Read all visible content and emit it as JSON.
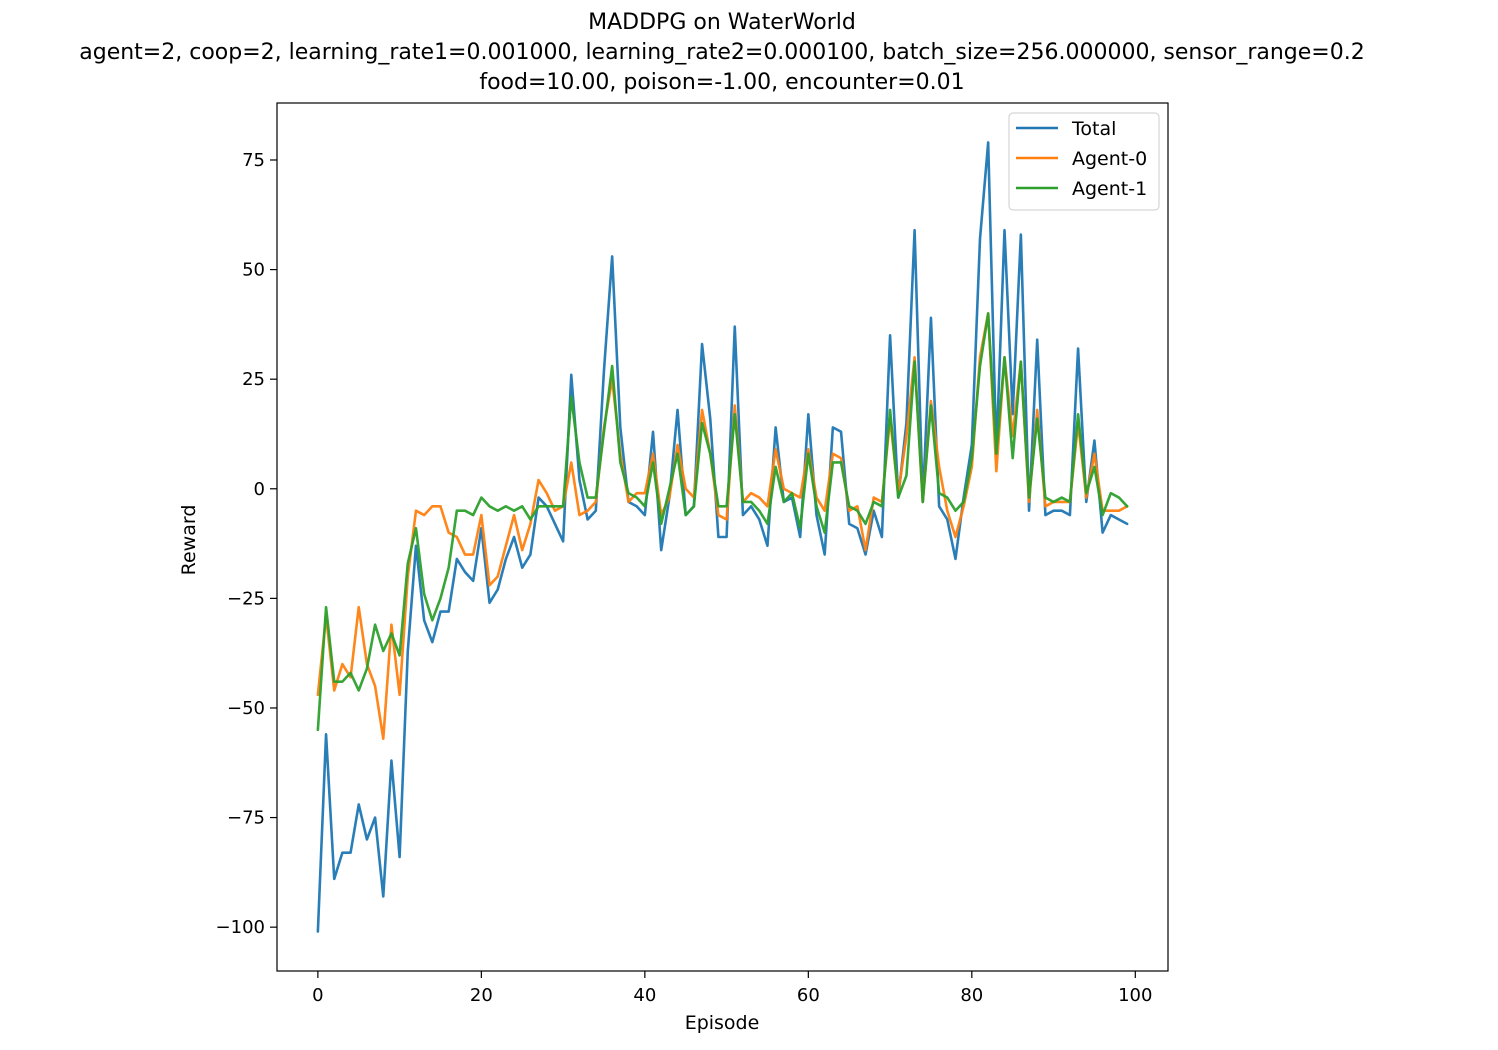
{
  "chart_data": {
    "type": "line",
    "title": "MADDPG on WaterWorld",
    "subtitle_lines": [
      "agent=2, coop=2, learning_rate1=0.001000, learning_rate2=0.000100, batch_size=256.000000, sensor_range=0.2",
      "food=10.00, poison=-1.00, encounter=0.01"
    ],
    "xlabel": "Episode",
    "ylabel": "Reward",
    "xlim": [
      -5,
      104
    ],
    "ylim": [
      -110,
      88
    ],
    "xticks": [
      0,
      20,
      40,
      60,
      80,
      100
    ],
    "yticks": [
      -100,
      -75,
      -50,
      -25,
      0,
      25,
      50,
      75
    ],
    "xtick_labels": [
      "0",
      "20",
      "40",
      "60",
      "80",
      "100"
    ],
    "ytick_labels": [
      "−100",
      "−75",
      "−50",
      "−25",
      "0",
      "25",
      "50",
      "75"
    ],
    "grid": false,
    "legend_position": "top-right",
    "x": [
      0,
      1,
      2,
      3,
      4,
      5,
      6,
      7,
      8,
      9,
      10,
      11,
      12,
      13,
      14,
      15,
      16,
      17,
      18,
      19,
      20,
      21,
      22,
      23,
      24,
      25,
      26,
      27,
      28,
      29,
      30,
      31,
      32,
      33,
      34,
      35,
      36,
      37,
      38,
      39,
      40,
      41,
      42,
      43,
      44,
      45,
      46,
      47,
      48,
      49,
      50,
      51,
      52,
      53,
      54,
      55,
      56,
      57,
      58,
      59,
      60,
      61,
      62,
      63,
      64,
      65,
      66,
      67,
      68,
      69,
      70,
      71,
      72,
      73,
      74,
      75,
      76,
      77,
      78,
      79,
      80,
      81,
      82,
      83,
      84,
      85,
      86,
      87,
      88,
      89,
      90,
      91,
      92,
      93,
      94,
      95,
      96,
      97,
      98,
      99
    ],
    "series": [
      {
        "name": "Total",
        "color": "#1f77b4",
        "values": [
          -101,
          -56,
          -89,
          -83,
          -83,
          -72,
          -80,
          -75,
          -93,
          -62,
          -84,
          -37,
          -13,
          -30,
          -35,
          -28,
          -28,
          -16,
          -19,
          -21,
          -9,
          -26,
          -23,
          -16,
          -11,
          -18,
          -15,
          -2,
          -4,
          -8,
          -12,
          26,
          2,
          -7,
          -5,
          27,
          53,
          14,
          -3,
          -4,
          -6,
          13,
          -14,
          -2,
          18,
          -6,
          -4,
          33,
          16,
          -11,
          -11,
          37,
          -6,
          -4,
          -7,
          -13,
          14,
          -3,
          -2,
          -11,
          17,
          -6,
          -15,
          14,
          13,
          -8,
          -9,
          -15,
          -5,
          -11,
          35,
          -2,
          15,
          59,
          -3,
          39,
          -4,
          -7,
          -16,
          -2,
          10,
          57,
          79,
          8,
          59,
          17,
          58,
          -5,
          34,
          -6,
          -5,
          -5,
          -6,
          32,
          -3,
          11,
          -10,
          -6,
          -7,
          -8
        ]
      },
      {
        "name": "Agent-0",
        "color": "#ff7f0e",
        "values": [
          -47,
          -29,
          -46,
          -40,
          -43,
          -27,
          -40,
          -45,
          -57,
          -31,
          -47,
          -20,
          -5,
          -6,
          -4,
          -4,
          -10,
          -11,
          -15,
          -15,
          -6,
          -22,
          -20,
          -13,
          -6,
          -14,
          -8,
          2,
          -1,
          -5,
          -4,
          6,
          -6,
          -5,
          -3,
          14,
          25,
          8,
          -3,
          -1,
          -1,
          8,
          -6,
          -2,
          10,
          0,
          -2,
          18,
          8,
          -6,
          -7,
          19,
          -3,
          -1,
          -2,
          -4,
          9,
          0,
          -1,
          -2,
          9,
          -2,
          -5,
          8,
          7,
          -5,
          -4,
          -14,
          -2,
          -3,
          16,
          -1,
          12,
          30,
          -3,
          20,
          5,
          -5,
          -11,
          -4,
          5,
          30,
          40,
          4,
          30,
          12,
          29,
          -3,
          18,
          -4,
          -3,
          -3,
          -3,
          15,
          -2,
          8,
          -5,
          -5,
          -5,
          -4
        ]
      },
      {
        "name": "Agent-1",
        "color": "#2ca02c",
        "values": [
          -55,
          -27,
          -44,
          -44,
          -42,
          -46,
          -41,
          -31,
          -37,
          -33,
          -38,
          -17,
          -9,
          -24,
          -30,
          -25,
          -18,
          -5,
          -5,
          -6,
          -2,
          -4,
          -5,
          -4,
          -5,
          -4,
          -7,
          -4,
          -4,
          -4,
          -4,
          21,
          6,
          -2,
          -2,
          13,
          28,
          6,
          -1,
          -2,
          -4,
          6,
          -8,
          0,
          8,
          -6,
          -4,
          15,
          8,
          -4,
          -4,
          17,
          -3,
          -3,
          -5,
          -8,
          5,
          -3,
          -1,
          -9,
          8,
          -4,
          -10,
          6,
          6,
          -4,
          -5,
          -8,
          -3,
          -4,
          18,
          -2,
          3,
          29,
          -3,
          19,
          -1,
          -2,
          -5,
          -3,
          7,
          28,
          40,
          8,
          30,
          7,
          29,
          -2,
          16,
          -2,
          -3,
          -2,
          -3,
          17,
          -1,
          5,
          -6,
          -1,
          -2,
          -4
        ]
      }
    ]
  }
}
